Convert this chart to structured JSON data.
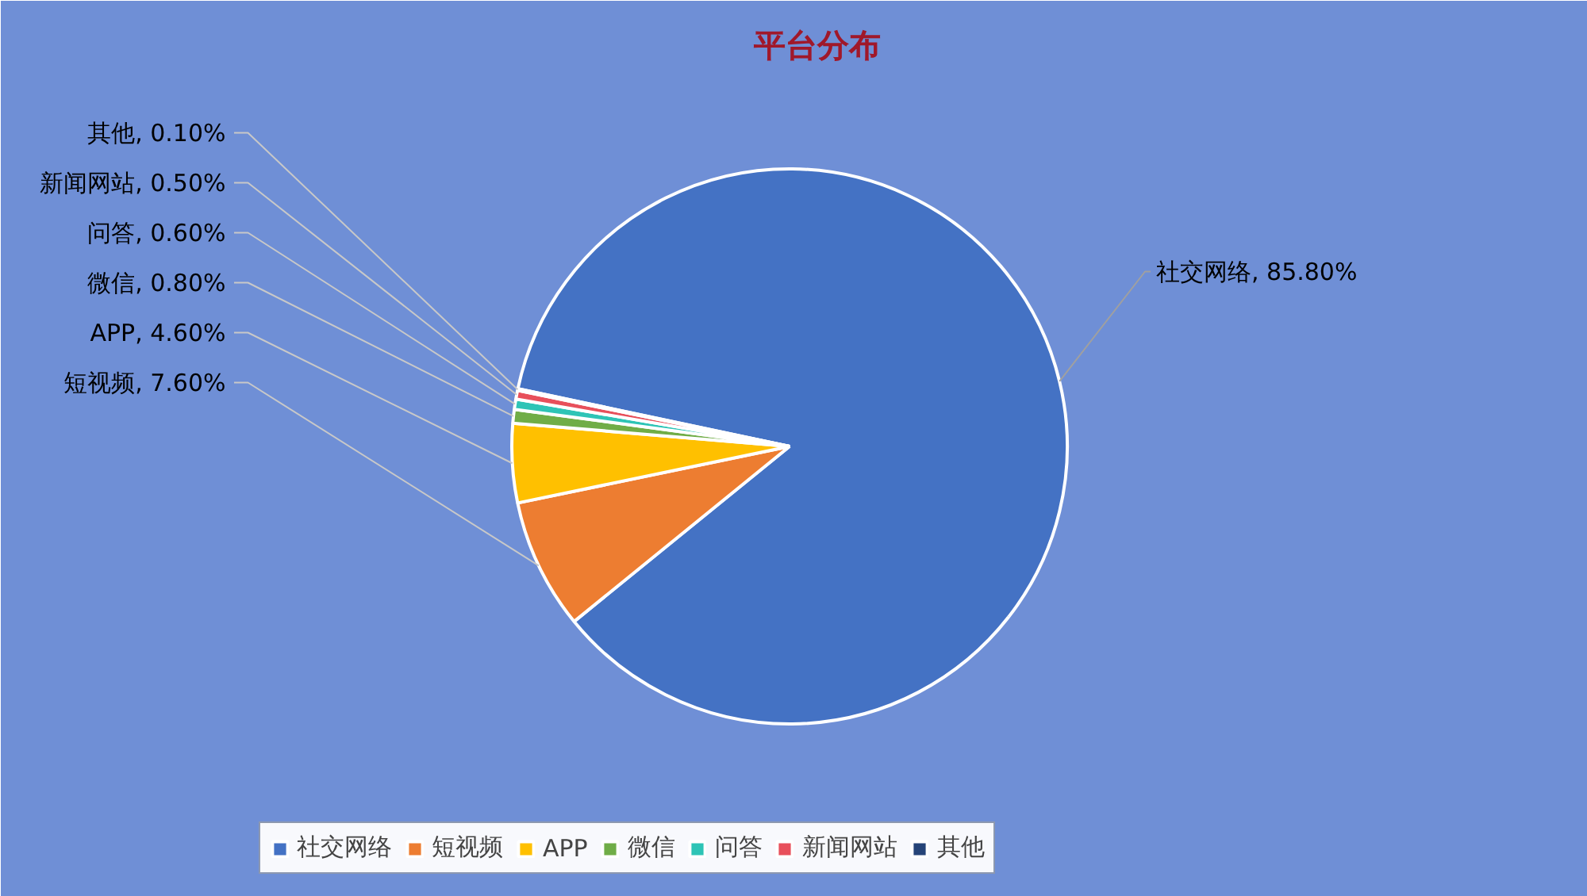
{
  "chart_data": {
    "type": "pie",
    "title": "平台分布",
    "categories": [
      "社交网络",
      "短视频",
      "APP",
      "微信",
      "问答",
      "新闻网站",
      "其他"
    ],
    "values": [
      85.8,
      7.6,
      4.6,
      0.8,
      0.6,
      0.5,
      0.1
    ],
    "colors": [
      "#4472c4",
      "#ed7d31",
      "#ffc000",
      "#70ad47",
      "#2ec4b6",
      "#e8505b",
      "#264478"
    ],
    "value_labels": [
      "社交网络, 85.80%",
      "短视频, 7.60%",
      "APP, 4.60%",
      "微信, 0.80%",
      "问答, 0.60%",
      "新闻网站, 0.50%",
      "其他, 0.10%"
    ],
    "legend": "bottom"
  }
}
